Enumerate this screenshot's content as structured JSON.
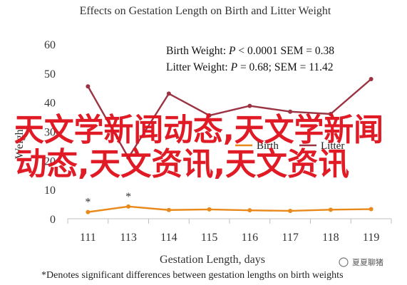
{
  "chart_data": {
    "type": "line",
    "title": "Effects on Gestation Length on Birth and Litter Weight",
    "xlabel": "Gestation Length, days",
    "ylabel": "Weight",
    "categories": [
      "111",
      "113",
      "114",
      "115",
      "116",
      "117",
      "118",
      "119"
    ],
    "ylim": [
      0,
      60
    ],
    "yticks": [
      0,
      10,
      20,
      30,
      40,
      50,
      60
    ],
    "grid": false,
    "legend_position": "right-middle",
    "series": [
      {
        "name": "Birth",
        "color": "#e8891a",
        "values": [
          2.3,
          4.2,
          3.0,
          3.2,
          2.9,
          2.7,
          3.1,
          3.3
        ]
      },
      {
        "name": "Litter",
        "color": "#9b3342",
        "values": [
          45.5,
          21.0,
          43.0,
          35.5,
          38.8,
          36.8,
          36.0,
          48.0
        ]
      }
    ],
    "stats": [
      {
        "label": "Birth Weight: ",
        "pvar": "P",
        "rest": " < 0.0001 SEM = 0.38"
      },
      {
        "label": "Litter Weight: ",
        "pvar": "P",
        "rest": " = 0.68; SEM = 11.42"
      }
    ],
    "significance_marks": [
      {
        "category": "111",
        "symbol": "*"
      },
      {
        "category": "113",
        "symbol": "*"
      }
    ],
    "footnote": "*Denotes significant differences between gestation lengths on birth weights"
  },
  "overlay": {
    "line1": "天文学新闻动态,天文学新闻",
    "line2": "动态,天文资讯,天文资讯",
    "badge": "夏夏聊猪"
  }
}
